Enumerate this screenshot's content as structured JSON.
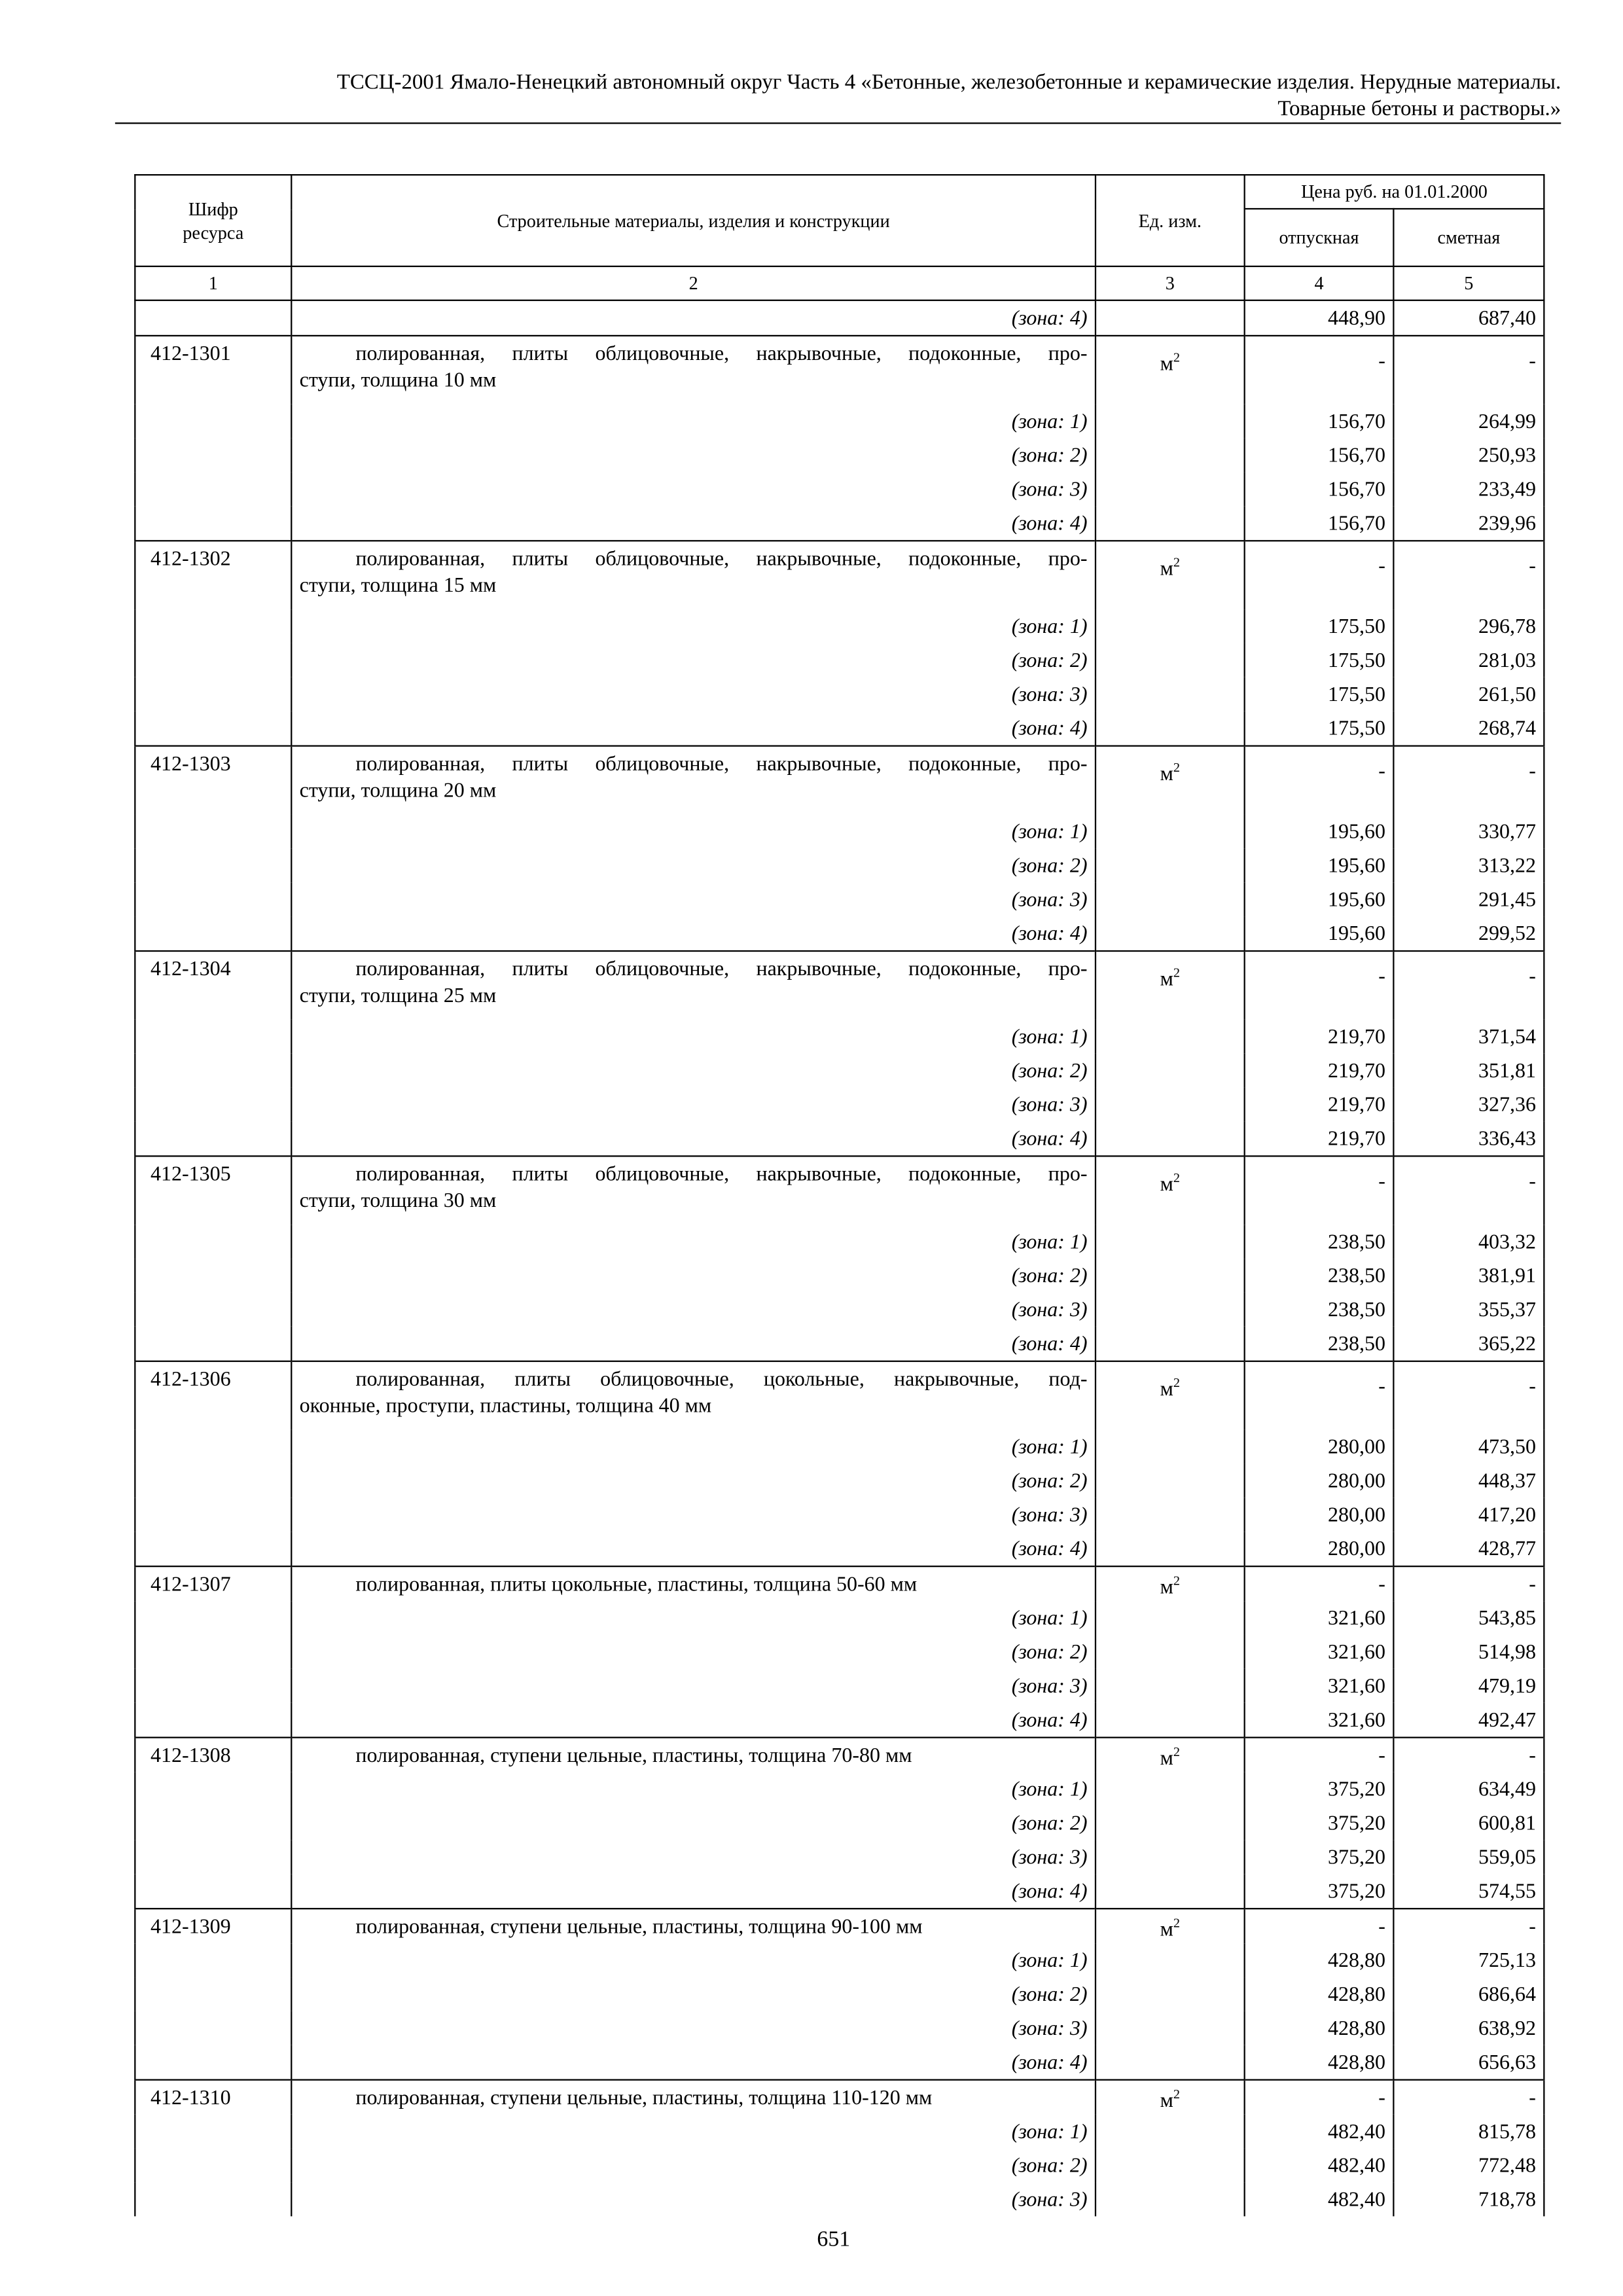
{
  "header": {
    "line1": "ТССЦ-2001 Ямало-Ненецкий автономный округ Часть 4 «Бетонные, железобетонные и керамические изделия. Нерудные материалы.",
    "line2": "Товарные бетоны и растворы.»"
  },
  "table": {
    "col_code": "Шифр ресурса",
    "col_name": "Строительные материалы, изделия и конструкции",
    "col_unit": "Ед. изм.",
    "col_price": "Цена руб. на 01.01.2000",
    "col_release": "отпускная",
    "col_estimate": "сметная",
    "col_numbers": [
      "1",
      "2",
      "3",
      "4",
      "5"
    ],
    "continuation": {
      "zone": "(зона: 4)",
      "release": "448,90",
      "estimate": "687,40"
    },
    "items": [
      {
        "code": "412-1301",
        "lines": [
          "полированная, плиты облицовочные, накрывочные, подоконные, про-",
          "ступи, толщина 10 мм"
        ],
        "unit": "м",
        "unit_exp": "2",
        "release": "-",
        "estimate": "-",
        "zones": [
          {
            "zone": "(зона: 1)",
            "release": "156,70",
            "estimate": "264,99"
          },
          {
            "zone": "(зона: 2)",
            "release": "156,70",
            "estimate": "250,93"
          },
          {
            "zone": "(зона: 3)",
            "release": "156,70",
            "estimate": "233,49"
          },
          {
            "zone": "(зона: 4)",
            "release": "156,70",
            "estimate": "239,96"
          }
        ]
      },
      {
        "code": "412-1302",
        "lines": [
          "полированная, плиты облицовочные, накрывочные, подоконные, про-",
          "ступи, толщина 15 мм"
        ],
        "unit": "м",
        "unit_exp": "2",
        "release": "-",
        "estimate": "-",
        "zones": [
          {
            "zone": "(зона: 1)",
            "release": "175,50",
            "estimate": "296,78"
          },
          {
            "zone": "(зона: 2)",
            "release": "175,50",
            "estimate": "281,03"
          },
          {
            "zone": "(зона: 3)",
            "release": "175,50",
            "estimate": "261,50"
          },
          {
            "zone": "(зона: 4)",
            "release": "175,50",
            "estimate": "268,74"
          }
        ]
      },
      {
        "code": "412-1303",
        "lines": [
          "полированная, плиты облицовочные, накрывочные, подоконные, про-",
          "ступи, толщина 20 мм"
        ],
        "unit": "м",
        "unit_exp": "2",
        "release": "-",
        "estimate": "-",
        "zones": [
          {
            "zone": "(зона: 1)",
            "release": "195,60",
            "estimate": "330,77"
          },
          {
            "zone": "(зона: 2)",
            "release": "195,60",
            "estimate": "313,22"
          },
          {
            "zone": "(зона: 3)",
            "release": "195,60",
            "estimate": "291,45"
          },
          {
            "zone": "(зона: 4)",
            "release": "195,60",
            "estimate": "299,52"
          }
        ]
      },
      {
        "code": "412-1304",
        "lines": [
          "полированная, плиты облицовочные, накрывочные, подоконные, про-",
          "ступи, толщина 25 мм"
        ],
        "unit": "м",
        "unit_exp": "2",
        "release": "-",
        "estimate": "-",
        "zones": [
          {
            "zone": "(зона: 1)",
            "release": "219,70",
            "estimate": "371,54"
          },
          {
            "zone": "(зона: 2)",
            "release": "219,70",
            "estimate": "351,81"
          },
          {
            "zone": "(зона: 3)",
            "release": "219,70",
            "estimate": "327,36"
          },
          {
            "zone": "(зона: 4)",
            "release": "219,70",
            "estimate": "336,43"
          }
        ]
      },
      {
        "code": "412-1305",
        "lines": [
          "полированная, плиты облицовочные, накрывочные, подоконные, про-",
          "ступи, толщина 30 мм"
        ],
        "unit": "м",
        "unit_exp": "2",
        "release": "-",
        "estimate": "-",
        "zones": [
          {
            "zone": "(зона: 1)",
            "release": "238,50",
            "estimate": "403,32"
          },
          {
            "zone": "(зона: 2)",
            "release": "238,50",
            "estimate": "381,91"
          },
          {
            "zone": "(зона: 3)",
            "release": "238,50",
            "estimate": "355,37"
          },
          {
            "zone": "(зона: 4)",
            "release": "238,50",
            "estimate": "365,22"
          }
        ]
      },
      {
        "code": "412-1306",
        "lines": [
          "полированная, плиты облицовочные, цокольные, накрывочные, под-",
          "оконные, проступи, пластины, толщина 40 мм"
        ],
        "unit": "м",
        "unit_exp": "2",
        "release": "-",
        "estimate": "-",
        "zones": [
          {
            "zone": "(зона: 1)",
            "release": "280,00",
            "estimate": "473,50"
          },
          {
            "zone": "(зона: 2)",
            "release": "280,00",
            "estimate": "448,37"
          },
          {
            "zone": "(зона: 3)",
            "release": "280,00",
            "estimate": "417,20"
          },
          {
            "zone": "(зона: 4)",
            "release": "280,00",
            "estimate": "428,77"
          }
        ]
      },
      {
        "code": "412-1307",
        "lines": [
          "полированная, плиты цокольные, пластины, толщина 50-60 мм"
        ],
        "unit": "м",
        "unit_exp": "2",
        "release": "-",
        "estimate": "-",
        "zones": [
          {
            "zone": "(зона: 1)",
            "release": "321,60",
            "estimate": "543,85"
          },
          {
            "zone": "(зона: 2)",
            "release": "321,60",
            "estimate": "514,98"
          },
          {
            "zone": "(зона: 3)",
            "release": "321,60",
            "estimate": "479,19"
          },
          {
            "zone": "(зона: 4)",
            "release": "321,60",
            "estimate": "492,47"
          }
        ]
      },
      {
        "code": "412-1308",
        "lines": [
          "полированная, ступени цельные, пластины, толщина 70-80 мм"
        ],
        "unit": "м",
        "unit_exp": "2",
        "release": "-",
        "estimate": "-",
        "zones": [
          {
            "zone": "(зона: 1)",
            "release": "375,20",
            "estimate": "634,49"
          },
          {
            "zone": "(зона: 2)",
            "release": "375,20",
            "estimate": "600,81"
          },
          {
            "zone": "(зона: 3)",
            "release": "375,20",
            "estimate": "559,05"
          },
          {
            "zone": "(зона: 4)",
            "release": "375,20",
            "estimate": "574,55"
          }
        ]
      },
      {
        "code": "412-1309",
        "lines": [
          "полированная, ступени цельные, пластины, толщина 90-100 мм"
        ],
        "unit": "м",
        "unit_exp": "2",
        "release": "-",
        "estimate": "-",
        "zones": [
          {
            "zone": "(зона: 1)",
            "release": "428,80",
            "estimate": "725,13"
          },
          {
            "zone": "(зона: 2)",
            "release": "428,80",
            "estimate": "686,64"
          },
          {
            "zone": "(зона: 3)",
            "release": "428,80",
            "estimate": "638,92"
          },
          {
            "zone": "(зона: 4)",
            "release": "428,80",
            "estimate": "656,63"
          }
        ]
      },
      {
        "code": "412-1310",
        "lines": [
          "полированная, ступени цельные, пластины, толщина 110-120 мм"
        ],
        "unit": "м",
        "unit_exp": "2",
        "release": "-",
        "estimate": "-",
        "zones": [
          {
            "zone": "(зона: 1)",
            "release": "482,40",
            "estimate": "815,78"
          },
          {
            "zone": "(зона: 2)",
            "release": "482,40",
            "estimate": "772,48"
          },
          {
            "zone": "(зона: 3)",
            "release": "482,40",
            "estimate": "718,78"
          }
        ]
      }
    ]
  },
  "page_number": "651"
}
